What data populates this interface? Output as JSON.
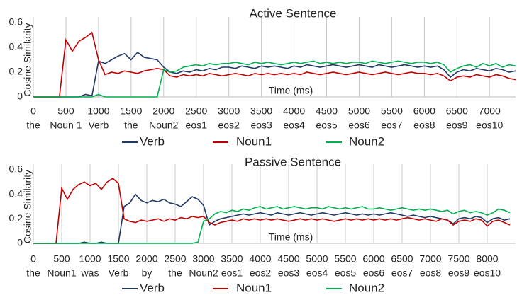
{
  "chart_data": [
    {
      "type": "line",
      "title": "Active Sentence",
      "x_label": "Time (ms)",
      "y_label": "Cosine Similarity",
      "xlim": [
        0,
        7400
      ],
      "ylim": [
        0,
        0.6
      ],
      "yticks": [
        0,
        0.2,
        0.4,
        0.6
      ],
      "xticks": [
        0,
        500,
        1000,
        1500,
        2000,
        2500,
        3000,
        3500,
        4000,
        4500,
        5000,
        5500,
        6000,
        6500,
        7000
      ],
      "xtick_words": [
        "the",
        "Noun 1",
        "Verb",
        "the",
        "Noun2",
        "eos1",
        "eos2",
        "eos3",
        "eos4",
        "eos5",
        "eos6",
        "eos7",
        "eos8",
        "eos9",
        "eos10"
      ],
      "grid": "vertical",
      "x": [
        0,
        100,
        200,
        300,
        400,
        500,
        600,
        700,
        800,
        900,
        1000,
        1100,
        1200,
        1300,
        1400,
        1500,
        1600,
        1700,
        1800,
        1900,
        2000,
        2100,
        2200,
        2300,
        2400,
        2500,
        2600,
        2700,
        2800,
        2900,
        3000,
        3100,
        3200,
        3300,
        3400,
        3500,
        3600,
        3700,
        3800,
        3900,
        4000,
        4100,
        4200,
        4300,
        4400,
        4500,
        4600,
        4700,
        4800,
        4900,
        5000,
        5100,
        5200,
        5300,
        5400,
        5500,
        5600,
        5700,
        5800,
        5900,
        6000,
        6100,
        6200,
        6300,
        6400,
        6500,
        6600,
        6700,
        6800,
        6900,
        7000,
        7100,
        7200,
        7300,
        7400
      ],
      "series": [
        {
          "name": "Verb",
          "color": "#1f3864",
          "values": [
            0,
            0,
            0,
            0,
            0,
            0,
            0,
            0,
            0.02,
            0.01,
            0.29,
            0.27,
            0.3,
            0.33,
            0.35,
            0.3,
            0.36,
            0.32,
            0.31,
            0.3,
            0.24,
            0.2,
            0.19,
            0.21,
            0.2,
            0.22,
            0.21,
            0.23,
            0.22,
            0.24,
            0.24,
            0.23,
            0.25,
            0.24,
            0.23,
            0.25,
            0.24,
            0.25,
            0.24,
            0.23,
            0.25,
            0.24,
            0.26,
            0.25,
            0.24,
            0.25,
            0.26,
            0.25,
            0.24,
            0.25,
            0.26,
            0.25,
            0.24,
            0.26,
            0.25,
            0.24,
            0.25,
            0.26,
            0.25,
            0.24,
            0.25,
            0.24,
            0.25,
            0.22,
            0.16,
            0.2,
            0.22,
            0.21,
            0.23,
            0.22,
            0.21,
            0.23,
            0.22,
            0.2,
            0.21
          ]
        },
        {
          "name": "Noun1",
          "color": "#c00000",
          "values": [
            0,
            0,
            0,
            0,
            0,
            0.46,
            0.37,
            0.45,
            0.48,
            0.52,
            0.3,
            0.18,
            0.2,
            0.19,
            0.21,
            0.2,
            0.19,
            0.21,
            0.22,
            0.23,
            0.22,
            0.17,
            0.16,
            0.18,
            0.17,
            0.18,
            0.17,
            0.19,
            0.18,
            0.17,
            0.18,
            0.19,
            0.18,
            0.17,
            0.19,
            0.18,
            0.19,
            0.18,
            0.19,
            0.18,
            0.19,
            0.18,
            0.2,
            0.19,
            0.18,
            0.19,
            0.2,
            0.19,
            0.18,
            0.19,
            0.2,
            0.19,
            0.18,
            0.19,
            0.2,
            0.19,
            0.18,
            0.19,
            0.2,
            0.19,
            0.19,
            0.18,
            0.19,
            0.17,
            0.13,
            0.16,
            0.17,
            0.16,
            0.18,
            0.17,
            0.16,
            0.18,
            0.17,
            0.15,
            0.14
          ]
        },
        {
          "name": "Noun2",
          "color": "#00b050",
          "values": [
            0,
            0,
            0,
            0,
            0,
            0,
            0,
            0,
            0,
            0,
            0.02,
            0,
            0,
            0,
            0,
            0,
            0,
            0,
            0,
            0,
            0.22,
            0.2,
            0.21,
            0.24,
            0.25,
            0.26,
            0.25,
            0.27,
            0.26,
            0.27,
            0.27,
            0.28,
            0.27,
            0.26,
            0.28,
            0.27,
            0.28,
            0.27,
            0.26,
            0.27,
            0.28,
            0.27,
            0.28,
            0.29,
            0.27,
            0.28,
            0.27,
            0.28,
            0.27,
            0.28,
            0.28,
            0.27,
            0.29,
            0.28,
            0.27,
            0.28,
            0.29,
            0.28,
            0.27,
            0.28,
            0.28,
            0.27,
            0.28,
            0.26,
            0.2,
            0.23,
            0.25,
            0.26,
            0.24,
            0.27,
            0.25,
            0.27,
            0.24,
            0.26,
            0.25
          ]
        }
      ]
    },
    {
      "type": "line",
      "title": "Passive Sentence",
      "x_label": "Time (ms)",
      "y_label": "Cosine Similarity",
      "xlim": [
        0,
        8500
      ],
      "ylim": [
        0,
        0.6
      ],
      "yticks": [
        0,
        0.2,
        0.4,
        0.6
      ],
      "xticks": [
        0,
        500,
        1000,
        1500,
        2000,
        2500,
        3000,
        3500,
        4000,
        4500,
        5000,
        5500,
        6000,
        6500,
        7000,
        7500,
        8000
      ],
      "xtick_words": [
        "the",
        "Noun1",
        "was",
        "Verb",
        "by",
        "the",
        "Noun2",
        "eos1",
        "eos2",
        "eos3",
        "eos4",
        "eos5",
        "eos6",
        "eos7",
        "eos8",
        "eos9",
        "eos10"
      ],
      "grid": "vertical",
      "x": [
        0,
        100,
        200,
        300,
        400,
        500,
        600,
        700,
        800,
        900,
        1000,
        1100,
        1200,
        1300,
        1400,
        1500,
        1600,
        1700,
        1800,
        1900,
        2000,
        2100,
        2200,
        2300,
        2400,
        2500,
        2600,
        2700,
        2800,
        2900,
        3000,
        3100,
        3200,
        3300,
        3400,
        3500,
        3600,
        3700,
        3800,
        3900,
        4000,
        4100,
        4200,
        4300,
        4400,
        4500,
        4600,
        4700,
        4800,
        4900,
        5000,
        5100,
        5200,
        5300,
        5400,
        5500,
        5600,
        5700,
        5800,
        5900,
        6000,
        6100,
        6200,
        6300,
        6400,
        6500,
        6600,
        6700,
        6800,
        6900,
        7000,
        7100,
        7200,
        7300,
        7400,
        7500,
        7600,
        7700,
        7800,
        7900,
        8000,
        8100,
        8200,
        8300,
        8400
      ],
      "series": [
        {
          "name": "Verb",
          "color": "#1f3864",
          "values": [
            0,
            0,
            0,
            0,
            0,
            0,
            0,
            0,
            0,
            0.01,
            0,
            0,
            0.01,
            0,
            0,
            0,
            0.3,
            0.33,
            0.4,
            0.35,
            0.33,
            0.35,
            0.34,
            0.36,
            0.33,
            0.32,
            0.3,
            0.34,
            0.38,
            0.36,
            0.31,
            0.15,
            0.18,
            0.2,
            0.21,
            0.22,
            0.23,
            0.24,
            0.23,
            0.24,
            0.25,
            0.24,
            0.23,
            0.25,
            0.24,
            0.23,
            0.24,
            0.25,
            0.24,
            0.23,
            0.24,
            0.25,
            0.24,
            0.23,
            0.24,
            0.25,
            0.24,
            0.23,
            0.24,
            0.23,
            0.24,
            0.23,
            0.24,
            0.25,
            0.24,
            0.23,
            0.22,
            0.23,
            0.22,
            0.21,
            0.22,
            0.21,
            0.2,
            0.19,
            0.16,
            0.2,
            0.21,
            0.2,
            0.22,
            0.21,
            0.17,
            0.2,
            0.21,
            0.19,
            0.2
          ]
        },
        {
          "name": "Noun1",
          "color": "#c00000",
          "values": [
            0,
            0,
            0,
            0,
            0,
            0.45,
            0.36,
            0.44,
            0.48,
            0.5,
            0.47,
            0.49,
            0.44,
            0.5,
            0.53,
            0.49,
            0.2,
            0.18,
            0.17,
            0.19,
            0.18,
            0.19,
            0.2,
            0.18,
            0.2,
            0.19,
            0.21,
            0.2,
            0.22,
            0.21,
            0.22,
            0.17,
            0.15,
            0.17,
            0.18,
            0.19,
            0.18,
            0.2,
            0.19,
            0.2,
            0.19,
            0.2,
            0.19,
            0.2,
            0.19,
            0.18,
            0.19,
            0.2,
            0.19,
            0.2,
            0.19,
            0.2,
            0.19,
            0.18,
            0.19,
            0.2,
            0.19,
            0.2,
            0.19,
            0.2,
            0.19,
            0.2,
            0.19,
            0.2,
            0.19,
            0.2,
            0.21,
            0.2,
            0.19,
            0.2,
            0.19,
            0.18,
            0.2,
            0.19,
            0.15,
            0.18,
            0.19,
            0.18,
            0.2,
            0.19,
            0.14,
            0.18,
            0.19,
            0.17,
            0.15
          ]
        },
        {
          "name": "Noun2",
          "color": "#00b050",
          "values": [
            0,
            0,
            0,
            0,
            0,
            0,
            0,
            0,
            0,
            0,
            0,
            0,
            0,
            0,
            0,
            0,
            0,
            0,
            0,
            0,
            0,
            0,
            0,
            0,
            0,
            0,
            0,
            0,
            0,
            0.01,
            0.18,
            0.2,
            0.24,
            0.26,
            0.25,
            0.27,
            0.26,
            0.28,
            0.27,
            0.29,
            0.3,
            0.28,
            0.29,
            0.3,
            0.28,
            0.29,
            0.3,
            0.29,
            0.28,
            0.29,
            0.29,
            0.28,
            0.3,
            0.29,
            0.28,
            0.29,
            0.28,
            0.29,
            0.3,
            0.28,
            0.28,
            0.29,
            0.28,
            0.27,
            0.28,
            0.29,
            0.28,
            0.27,
            0.28,
            0.27,
            0.28,
            0.27,
            0.26,
            0.27,
            0.24,
            0.26,
            0.27,
            0.25,
            0.26,
            0.25,
            0.23,
            0.25,
            0.28,
            0.27,
            0.25
          ]
        }
      ]
    }
  ]
}
